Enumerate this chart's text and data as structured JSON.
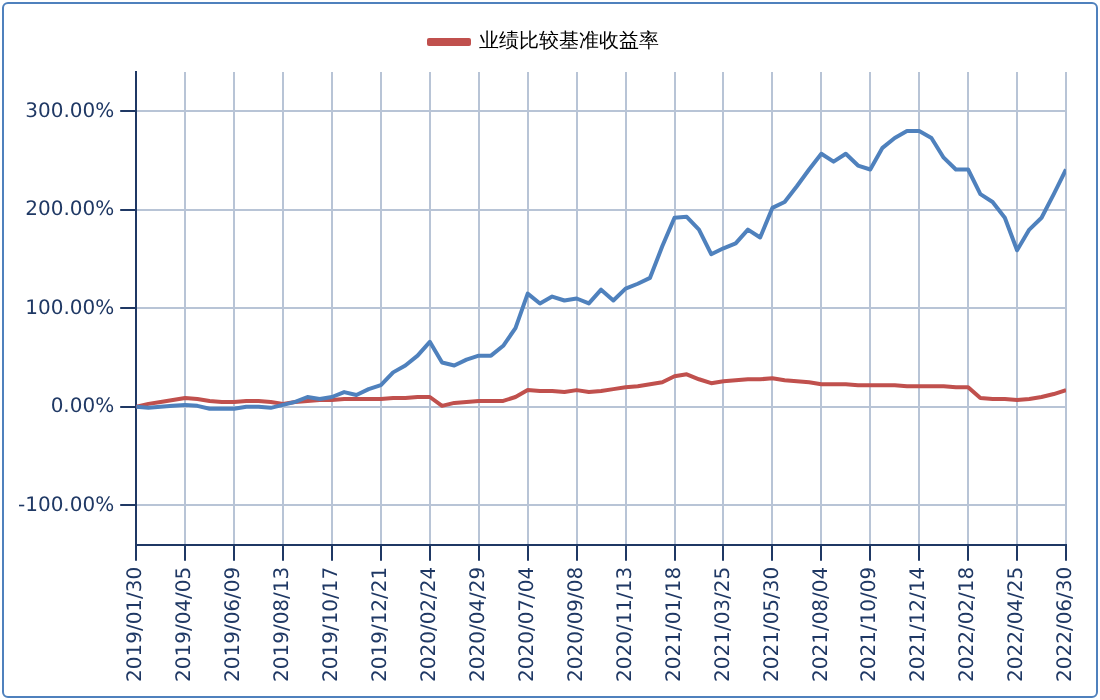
{
  "chart_data": {
    "type": "line",
    "categories": [
      "2019/01/30",
      null,
      null,
      null,
      "2019/04/05",
      null,
      null,
      null,
      "2019/06/09",
      null,
      null,
      null,
      "2019/08/13",
      null,
      null,
      null,
      "2019/10/17",
      null,
      null,
      null,
      "2019/12/21",
      null,
      null,
      null,
      "2020/02/24",
      null,
      null,
      null,
      "2020/04/29",
      null,
      null,
      null,
      "2020/07/04",
      null,
      null,
      null,
      "2020/09/08",
      null,
      null,
      null,
      "2020/11/13",
      null,
      null,
      null,
      "2021/01/18",
      null,
      null,
      null,
      "2021/03/25",
      null,
      null,
      null,
      "2021/05/30",
      null,
      null,
      null,
      "2021/08/04",
      null,
      null,
      null,
      "2021/10/09",
      null,
      null,
      null,
      "2021/12/14",
      null,
      null,
      null,
      "2022/02/18",
      null,
      null,
      null,
      "2022/04/25",
      null,
      null,
      null,
      "2022/06/30"
    ],
    "series": [
      {
        "color": "#4f81bd",
        "values": [
          0,
          -1,
          0,
          1,
          2,
          1,
          -2,
          -2,
          -2,
          0,
          0,
          -1,
          2,
          5,
          10,
          8,
          10,
          15,
          12,
          18,
          22,
          35,
          42,
          52,
          66,
          45,
          42,
          48,
          52,
          52,
          62,
          80,
          115,
          105,
          112,
          108,
          110,
          105,
          119,
          108,
          120,
          125,
          131,
          163,
          192,
          193,
          180,
          155,
          161,
          166,
          180,
          172,
          202,
          208,
          224,
          241,
          257,
          249,
          257,
          245,
          241,
          263,
          273,
          280,
          280,
          273,
          253,
          241,
          241,
          216,
          208,
          192,
          159,
          180,
          192,
          216,
          241
        ]
      },
      {
        "name": "业绩比较基准收益率",
        "color": "#c0504d",
        "values": [
          0,
          3,
          5,
          7,
          9,
          8,
          6,
          5,
          5,
          6,
          6,
          5,
          3,
          5,
          6,
          7,
          7,
          8,
          8,
          8,
          8,
          9,
          9,
          10,
          10,
          1,
          4,
          5,
          6,
          6,
          6,
          10,
          17,
          16,
          16,
          15,
          17,
          15,
          16,
          18,
          20,
          21,
          23,
          25,
          31,
          33,
          28,
          24,
          26,
          27,
          28,
          28,
          29,
          27,
          26,
          25,
          23,
          23,
          23,
          22,
          22,
          22,
          22,
          21,
          21,
          21,
          21,
          20,
          20,
          9,
          8,
          8,
          7,
          8,
          10,
          13,
          17
        ]
      }
    ],
    "ylim": [
      -140,
      340
    ],
    "yticks": [
      {
        "value": -100,
        "label": "-100.00%"
      },
      {
        "value": 0,
        "label": "0.00%"
      },
      {
        "value": 100,
        "label": "100.00%"
      },
      {
        "value": 200,
        "label": "200.00%"
      },
      {
        "value": 300,
        "label": "300.00%"
      }
    ],
    "grid": true,
    "legend": "top",
    "line_style": "solid",
    "marker": "none"
  }
}
